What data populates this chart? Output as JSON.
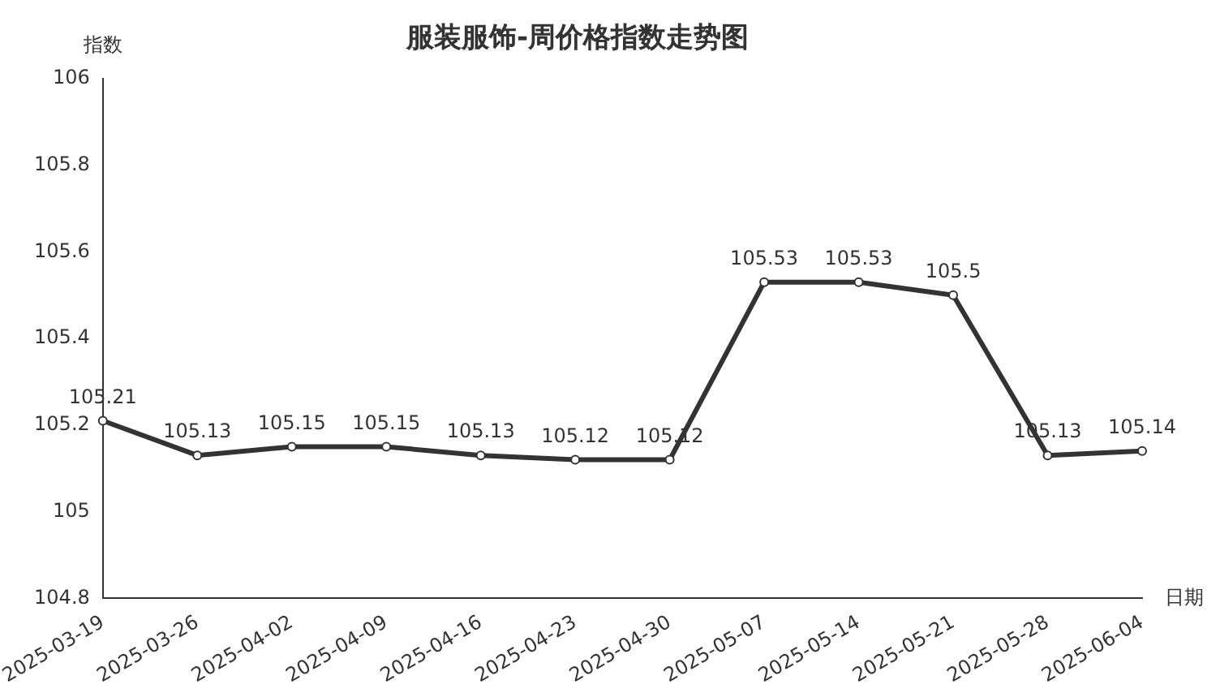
{
  "chart_data": {
    "type": "line",
    "title": "服装服饰-周价格指数走势图",
    "ylabel": "指数",
    "xlabel": "日期",
    "categories": [
      "2025-03-19",
      "2025-03-26",
      "2025-04-02",
      "2025-04-09",
      "2025-04-16",
      "2025-04-23",
      "2025-04-30",
      "2025-05-07",
      "2025-05-14",
      "2025-05-21",
      "2025-05-28",
      "2025-06-04"
    ],
    "series": [
      {
        "color": "#333333",
        "values": [
          105.21,
          105.13,
          105.15,
          105.15,
          105.13,
          105.12,
          105.12,
          105.53,
          105.53,
          105.5,
          105.13,
          105.14
        ]
      }
    ],
    "ylim": [
      104.8,
      106
    ],
    "yticks": [
      104.8,
      105,
      105.2,
      105.4,
      105.6,
      105.8,
      106
    ],
    "grid": false,
    "legend": false,
    "marker": "circle",
    "line_style": "solid",
    "data_labels": true
  }
}
